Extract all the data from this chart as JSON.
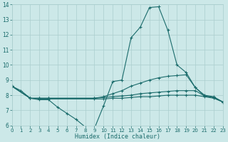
{
  "xlabel": "Humidex (Indice chaleur)",
  "xlim": [
    0,
    23
  ],
  "ylim": [
    6,
    14
  ],
  "xticks": [
    0,
    1,
    2,
    3,
    4,
    5,
    6,
    7,
    8,
    9,
    10,
    11,
    12,
    13,
    14,
    15,
    16,
    17,
    18,
    19,
    20,
    21,
    22,
    23
  ],
  "yticks": [
    6,
    7,
    8,
    9,
    10,
    11,
    12,
    13,
    14
  ],
  "bg_color": "#cce8e8",
  "grid_color": "#aacece",
  "line_color": "#1a6b6b",
  "lines": [
    {
      "x": [
        0,
        1,
        2,
        3,
        4,
        5,
        6,
        7,
        8,
        9,
        10,
        11,
        12,
        13,
        14,
        15,
        16,
        17,
        18,
        19,
        20,
        21,
        22,
        23
      ],
      "y": [
        8.6,
        8.3,
        7.8,
        7.7,
        7.7,
        7.2,
        6.8,
        6.4,
        5.9,
        5.8,
        7.3,
        8.9,
        9.0,
        11.8,
        12.5,
        13.8,
        13.85,
        12.3,
        10.0,
        9.5,
        8.5,
        7.95,
        7.85,
        7.55
      ]
    },
    {
      "x": [
        0,
        2,
        3,
        4,
        9,
        10,
        11,
        12,
        13,
        14,
        15,
        16,
        17,
        18,
        19,
        20,
        21,
        22,
        23
      ],
      "y": [
        8.6,
        7.8,
        7.8,
        7.8,
        7.8,
        7.9,
        8.1,
        8.3,
        8.6,
        8.8,
        9.0,
        9.15,
        9.25,
        9.3,
        9.35,
        8.5,
        8.0,
        7.9,
        7.55
      ]
    },
    {
      "x": [
        0,
        2,
        3,
        4,
        9,
        10,
        11,
        12,
        13,
        14,
        15,
        16,
        17,
        18,
        19,
        20,
        21,
        22,
        23
      ],
      "y": [
        8.6,
        7.8,
        7.8,
        7.8,
        7.8,
        7.85,
        7.9,
        7.95,
        8.0,
        8.1,
        8.15,
        8.2,
        8.25,
        8.3,
        8.3,
        8.3,
        7.95,
        7.85,
        7.55
      ]
    },
    {
      "x": [
        0,
        2,
        3,
        4,
        9,
        10,
        11,
        12,
        13,
        14,
        15,
        16,
        17,
        18,
        19,
        20,
        21,
        22,
        23
      ],
      "y": [
        8.6,
        7.8,
        7.75,
        7.75,
        7.75,
        7.75,
        7.8,
        7.8,
        7.85,
        7.9,
        7.9,
        7.95,
        8.0,
        8.0,
        8.0,
        8.0,
        7.9,
        7.8,
        7.55
      ]
    }
  ]
}
